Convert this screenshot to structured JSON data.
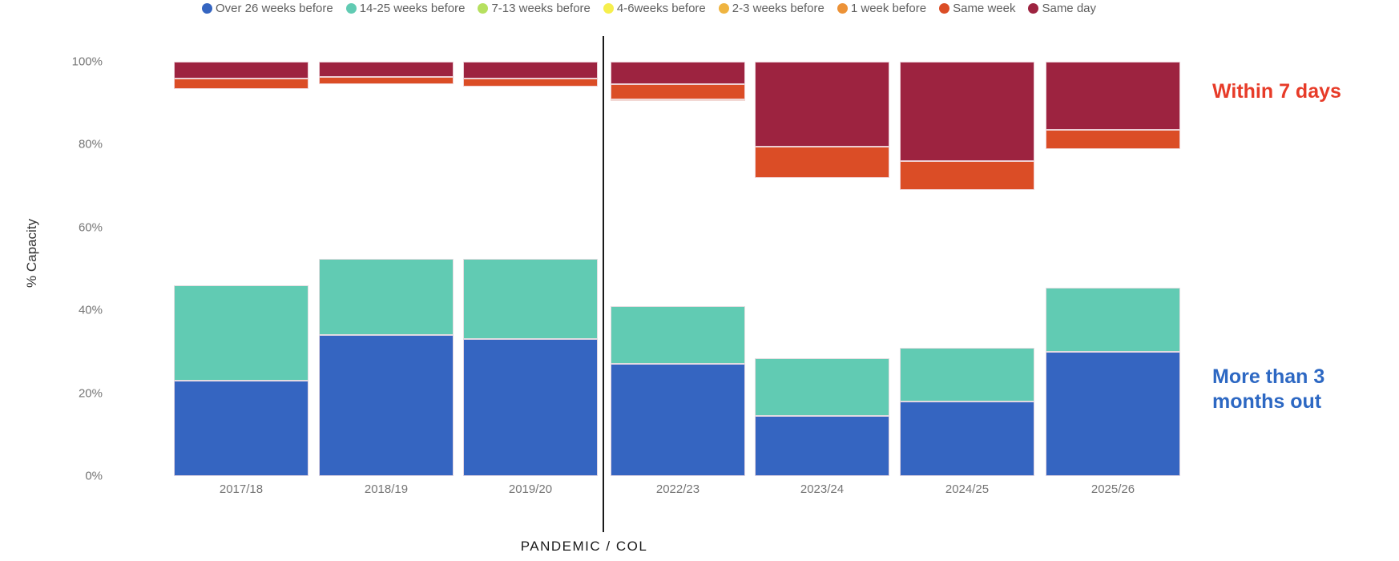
{
  "legend": {
    "items": [
      {
        "label": "Over 26 weeks before",
        "color": "#3565c1"
      },
      {
        "label": "14-25 weeks before",
        "color": "#61cbb3"
      },
      {
        "label": "7-13 weeks before",
        "color": "#b6e05f"
      },
      {
        "label": "4-6weeks before",
        "color": "#f6ef4d"
      },
      {
        "label": "2-3 weeks before",
        "color": "#efb440"
      },
      {
        "label": "1 week before",
        "color": "#ec9237"
      },
      {
        "label": "Same week",
        "color": "#db4d26"
      },
      {
        "label": "Same day",
        "color": "#9d2340"
      }
    ]
  },
  "y_axis": {
    "title": "% Capacity",
    "ticks": [
      {
        "value": 100,
        "label": "100%"
      },
      {
        "value": 80,
        "label": "80%"
      },
      {
        "value": 60,
        "label": "60%"
      },
      {
        "value": 40,
        "label": "40%"
      },
      {
        "value": 20,
        "label": "20%"
      },
      {
        "value": 0,
        "label": "0%"
      }
    ]
  },
  "x_axis": {
    "label": "PANDEMIC / COL"
  },
  "annotations": {
    "within_7_days": {
      "text": "Within 7 days",
      "color": "#e73b28"
    },
    "more_than_3_months": {
      "line1": "More than 3",
      "line2": "months out",
      "color": "#2d68c3"
    }
  },
  "chart_data": {
    "type": "bar",
    "subtype": "stacked-percent",
    "title": "",
    "xlabel": "PANDEMIC / COL",
    "ylabel": "% Capacity",
    "ylim": [
      0,
      100
    ],
    "grid": false,
    "legend_position": "top",
    "categories": [
      "2017/18",
      "2018/19",
      "2019/20",
      "2022/23",
      "2023/24",
      "2024/25",
      "2025/26"
    ],
    "divider": {
      "after_category": "2019/20",
      "before_category": "2022/23"
    },
    "series": [
      {
        "name": "Over 26 weeks before",
        "color": "#3565c1",
        "anchor": "bottom",
        "visible": true,
        "values": [
          23,
          34,
          33,
          27,
          14.5,
          18,
          30
        ]
      },
      {
        "name": "14-25 weeks before",
        "color": "#61cbb3",
        "anchor": "bottom",
        "visible": true,
        "values": [
          23,
          18.5,
          19.5,
          14,
          14,
          13,
          15.5
        ]
      },
      {
        "name": "7-13 weeks before",
        "color": "#b6e05f",
        "anchor": "none",
        "visible": false,
        "values": [
          null,
          null,
          null,
          null,
          null,
          null,
          null
        ]
      },
      {
        "name": "4-6weeks before",
        "color": "#f6ef4d",
        "anchor": "none",
        "visible": false,
        "values": [
          null,
          null,
          null,
          null,
          null,
          null,
          null
        ]
      },
      {
        "name": "2-3 weeks before",
        "color": "#efb440",
        "anchor": "none",
        "visible": false,
        "values": [
          null,
          null,
          null,
          null,
          null,
          null,
          null
        ]
      },
      {
        "name": "1 week before",
        "color": "#ec9237",
        "anchor": "top",
        "visible": true,
        "values": [
          0,
          0,
          0,
          0.5,
          0,
          0,
          0
        ]
      },
      {
        "name": "Same week",
        "color": "#db4d26",
        "anchor": "top",
        "visible": true,
        "values": [
          2.5,
          1.8,
          2,
          3.5,
          7.5,
          7,
          4.5
        ]
      },
      {
        "name": "Same day",
        "color": "#9d2340",
        "anchor": "top",
        "visible": true,
        "values": [
          4,
          3.7,
          4,
          5.5,
          20.5,
          24,
          16.5
        ]
      }
    ],
    "notes": "Middle booking-window segments (7-13, 4-6, 2-3 weeks) are not rendered; bars show a white gap between bottom stack (blue/teal) and top stack (orange/dark red) which ends at 100%."
  }
}
